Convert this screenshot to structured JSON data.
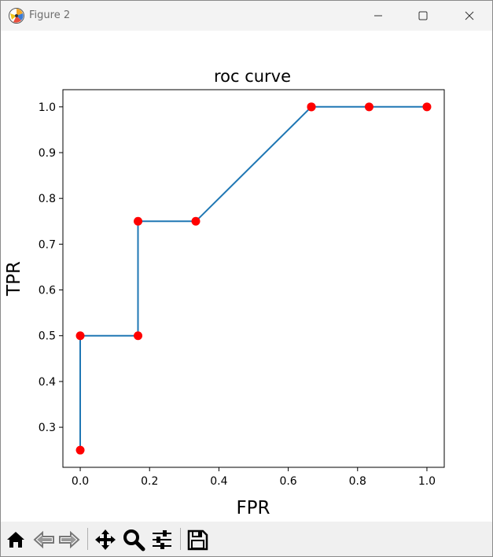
{
  "window": {
    "title": "Figure 2",
    "controls": [
      "minimize",
      "maximize",
      "close"
    ]
  },
  "colors": {
    "line": "#1f77b4",
    "marker": "#ff0000",
    "titlebar": "#f3f3f3",
    "toolbar": "#f0f0f0"
  },
  "chart_data": {
    "type": "line",
    "title": "roc curve",
    "xlabel": "FPR",
    "ylabel": "TPR",
    "x": [
      0.0,
      0.0,
      0.1667,
      0.1667,
      0.3333,
      0.6667,
      0.6667,
      0.8333,
      1.0
    ],
    "y": [
      0.25,
      0.5,
      0.5,
      0.75,
      0.75,
      1.0,
      1.0,
      1.0,
      1.0
    ],
    "xlim": [
      -0.05,
      1.05
    ],
    "ylim": [
      0.2125,
      1.0375
    ],
    "xticks": [
      "0.0",
      "0.2",
      "0.4",
      "0.6",
      "0.8",
      "1.0"
    ],
    "xtick_values": [
      0.0,
      0.2,
      0.4,
      0.6,
      0.8,
      1.0
    ],
    "yticks": [
      "0.3",
      "0.4",
      "0.5",
      "0.6",
      "0.7",
      "0.8",
      "0.9",
      "1.0"
    ],
    "ytick_values": [
      0.3,
      0.4,
      0.5,
      0.6,
      0.7,
      0.8,
      0.9,
      1.0
    ],
    "grid": false,
    "markers": "red circles"
  },
  "toolbar": {
    "tools": [
      {
        "name": "home-icon"
      },
      {
        "name": "back-arrow-icon"
      },
      {
        "name": "forward-arrow-icon"
      },
      {
        "name": "pan-icon"
      },
      {
        "name": "zoom-icon"
      },
      {
        "name": "configure-subplots-icon"
      },
      {
        "name": "save-icon"
      }
    ]
  }
}
